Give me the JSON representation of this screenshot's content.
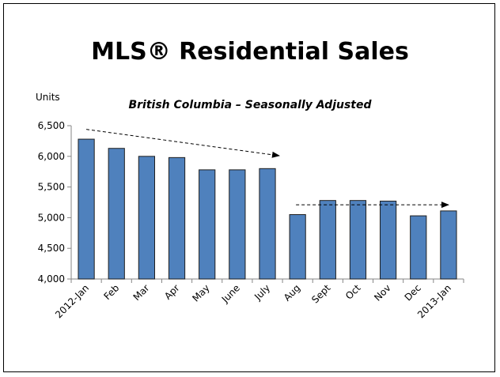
{
  "chart_data": {
    "type": "bar",
    "title": "MLS® Residential Sales",
    "subtitle": "British Columbia – Seasonally Adjusted",
    "ylabel": "Units",
    "xlabel": "",
    "ylim": [
      4000,
      6500
    ],
    "yticks": [
      4000,
      4500,
      5000,
      5500,
      6000,
      6500
    ],
    "ytick_labels": [
      "4,000",
      "4,500",
      "5,000",
      "5,500",
      "6,000",
      "6,500"
    ],
    "grid": false,
    "bar_color": "#4f81bd",
    "bar_stroke": "#1f1f1f",
    "categories": [
      "2012-Jan",
      "Feb",
      "Mar",
      "Apr",
      "May",
      "June",
      "July",
      "Aug",
      "Sept",
      "Oct",
      "Nov",
      "Dec",
      "2013-Jan"
    ],
    "values": [
      6280,
      6130,
      6000,
      5980,
      5780,
      5780,
      5800,
      5050,
      5280,
      5280,
      5270,
      5030,
      5110
    ],
    "annotations": [
      {
        "type": "dashed-arrow",
        "from": {
          "x": "2012-Jan",
          "y": 6440
        },
        "to": {
          "x": "July",
          "y": 6010
        }
      },
      {
        "type": "dashed-arrow",
        "from": {
          "x": "Aug",
          "y": 5210
        },
        "to": {
          "x": "2013-Jan",
          "y": 5210
        }
      }
    ]
  }
}
